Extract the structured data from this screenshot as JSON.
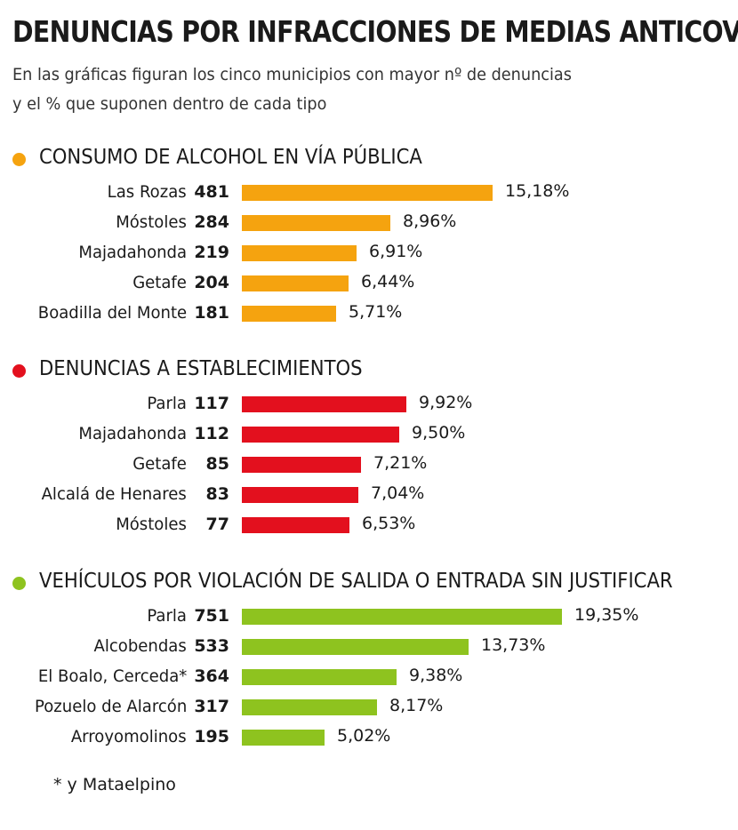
{
  "title": "DENUNCIAS POR INFRACCIONES DE MEDIAS ANTICOVID",
  "subtitle_line1": "En las gráficas figuran los cinco municipios con mayor nº de denuncias",
  "subtitle_line2": "y el % que suponen dentro de cada tipo",
  "footnote": "* y Mataelpino",
  "chart_data": [
    {
      "type": "bar",
      "orientation": "horizontal",
      "title": "CONSUMO DE ALCOHOL EN VÍA PÚBLICA",
      "color": "#f5a30f",
      "categories": [
        "Las Rozas",
        "Móstoles",
        "Majadahonda",
        "Getafe",
        "Boadilla del Monte"
      ],
      "counts": [
        "481",
        "284",
        "219",
        "204",
        "181"
      ],
      "values": [
        15.18,
        8.96,
        6.91,
        6.44,
        5.71
      ],
      "labels": [
        "15,18%",
        "8,96%",
        "6,91%",
        "6,44%",
        "5,71%"
      ]
    },
    {
      "type": "bar",
      "orientation": "horizontal",
      "title": "DENUNCIAS A ESTABLECIMIENTOS",
      "color": "#e3101e",
      "categories": [
        "Parla",
        "Majadahonda",
        "Getafe",
        "Alcalá de Henares",
        "Móstoles"
      ],
      "counts": [
        "117",
        "112",
        "85",
        "83",
        "77"
      ],
      "values": [
        9.92,
        9.5,
        7.21,
        7.04,
        6.53
      ],
      "labels": [
        "9,92%",
        "9,50%",
        "7,21%",
        "7,04%",
        "6,53%"
      ]
    },
    {
      "type": "bar",
      "orientation": "horizontal",
      "title": "VEHÍCULOS POR VIOLACIÓN DE SALIDA O ENTRADA SIN JUSTIFICAR",
      "color": "#8ec31f",
      "categories": [
        "Parla",
        "Alcobendas",
        "El Boalo, Cerceda*",
        "Pozuelo de Alarcón",
        "Arroyomolinos"
      ],
      "counts": [
        "751",
        "533",
        "364",
        "317",
        "195"
      ],
      "values": [
        19.35,
        13.73,
        9.38,
        8.17,
        5.02
      ],
      "labels": [
        "19,35%",
        "13,73%",
        "9,38%",
        "8,17%",
        "5,02%"
      ]
    }
  ]
}
